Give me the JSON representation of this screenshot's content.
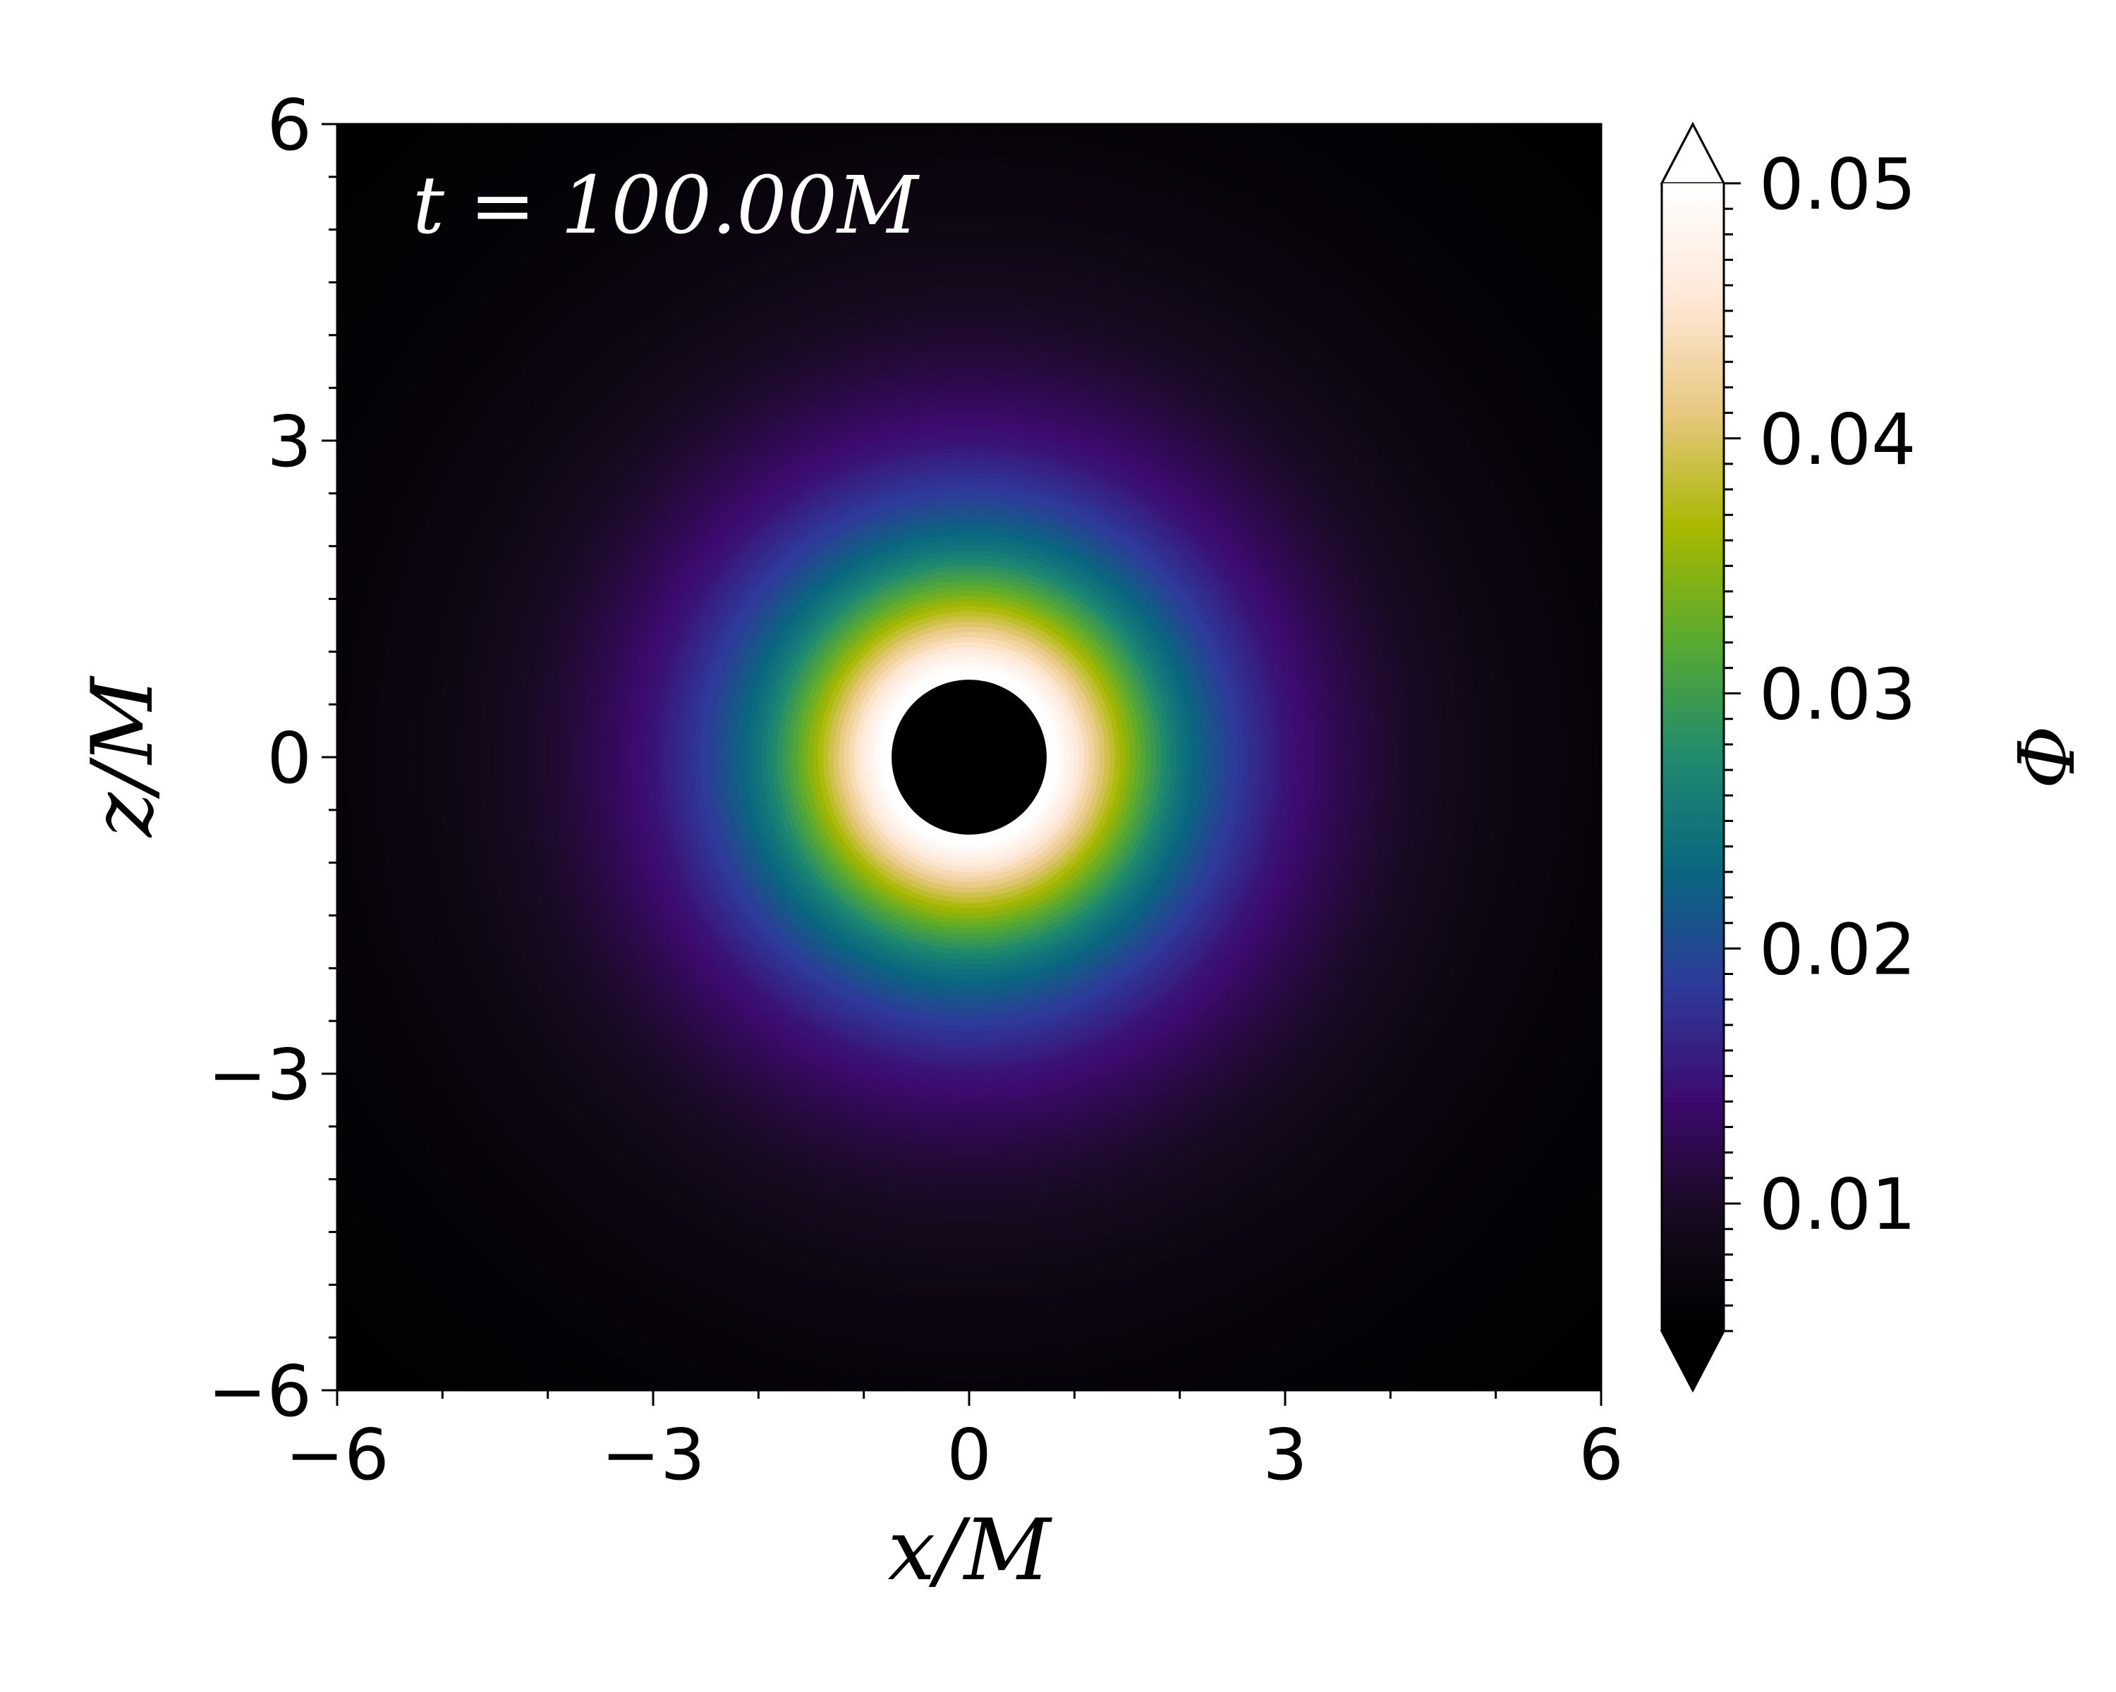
{
  "chart_data": {
    "type": "heatmap",
    "annotation": "t = 100.00M",
    "xlabel": "x/M",
    "ylabel": "z/M",
    "xlim": [
      -6,
      6
    ],
    "ylim": [
      -6,
      6
    ],
    "x_ticks": [
      "−6",
      "−3",
      "0",
      "3",
      "6"
    ],
    "y_ticks": [
      "6",
      "3",
      "0",
      "−3",
      "−6"
    ],
    "x_tick_values": [
      -6,
      -3,
      0,
      3,
      6
    ],
    "y_tick_values": [
      6,
      3,
      0,
      -3,
      -6
    ],
    "colorbar": {
      "label": "Φ",
      "range": [
        0.005,
        0.05
      ],
      "extend": "both",
      "ticks": [
        "0.05",
        "0.04",
        "0.03",
        "0.02",
        "0.01"
      ],
      "tick_values": [
        0.05,
        0.04,
        0.03,
        0.02,
        0.01
      ],
      "colormap": [
        "#000000",
        "#160a1e",
        "#3d0a6e",
        "#2e3a9a",
        "#0a6680",
        "#208a6e",
        "#58aa30",
        "#a8b800",
        "#e8c880",
        "#ffe8d8",
        "#ffffff"
      ]
    },
    "field": {
      "description_values": "radial profile of Φ vs r (M)",
      "r": [
        0.85,
        1.0,
        1.3,
        1.7,
        2.0,
        2.5,
        3.0,
        3.5,
        4.0,
        5.0,
        6.0,
        8.5
      ],
      "phi": [
        0.05,
        0.047,
        0.04,
        0.031,
        0.025,
        0.019,
        0.015,
        0.0125,
        0.0105,
        0.008,
        0.0065,
        0.005
      ]
    },
    "horizon_radius": 0.8
  }
}
